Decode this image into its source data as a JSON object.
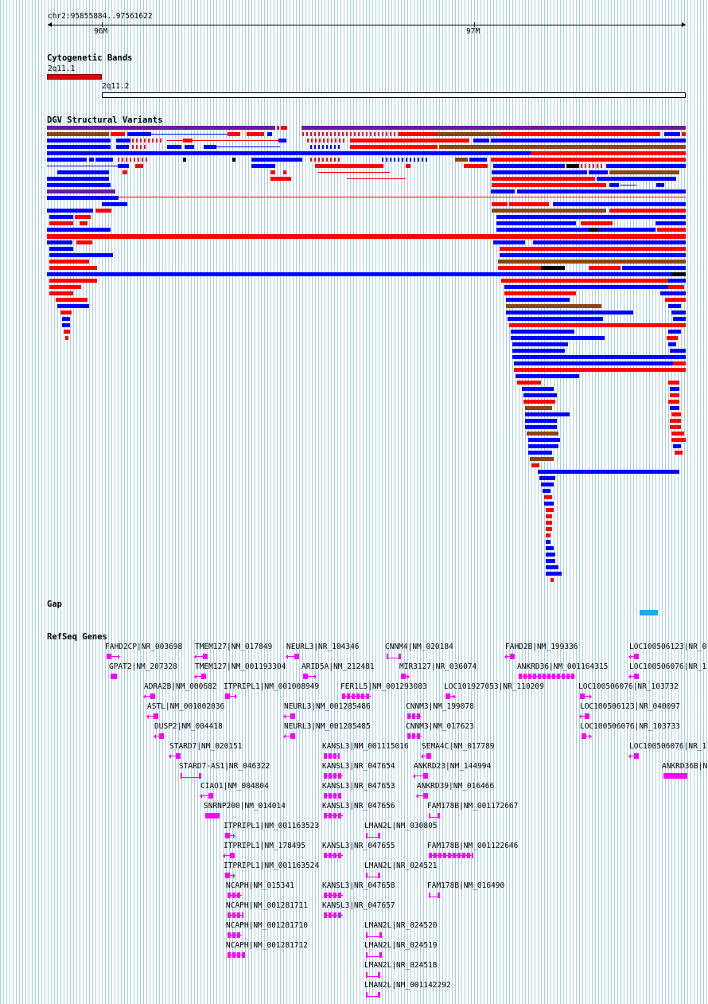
{
  "ruler": {
    "position": "chr2:95855884..97561622",
    "ticks": [
      "96M",
      "97M"
    ]
  },
  "tracks": {
    "cytoband_title": "Cytogenetic Bands",
    "dgv_title": "DGV Structural Variants",
    "gap_title": "Gap",
    "refseq_title": "RefSeq Genes"
  },
  "cytobands": [
    "2q11.1",
    "2q11.2"
  ],
  "colors": {
    "grid": "#a9cfe6",
    "sv_red": "#ff0000",
    "sv_blue": "#0000ff",
    "sv_brown": "#8b4513",
    "sv_purple": "#6a1b9a",
    "gene": "#ff00ff",
    "gap": "#1eaaf1",
    "band_red": "#e00000"
  },
  "genes": [
    "FAHD2CP|NR_003698",
    "TMEM127|NM_017849",
    "NEURL3|NR_104346",
    "CNNM4|NM_020184",
    "FAHD2B|NM_199336",
    "LOC100506123|NR_0",
    "GPAT2|NM_207328",
    "TMEM127|NM_001193304",
    "ARID5A|NM_212481",
    "MIR3127|NR_036074",
    "ANKRD36|NM_001164315",
    "LOC100506076|NR_1",
    "ADRA2B|NM_000682",
    "ITPRIPL1|NM_001008949",
    "FER1L5|NM_001293083",
    "LOC101927053|NR_110209",
    "LOC100506076|NR_103732",
    "ASTL|NM_001002036",
    "NEURL3|NM_001285486",
    "CNNM3|NM_199078",
    "LOC100506123|NR_040097",
    "DUSP2|NM_004418",
    "NEURL3|NM_001285485",
    "CNNM3|NM_017623",
    "LOC100506076|NR_103733",
    "STARD7|NM_020151",
    "KANSL3|NM_001115016",
    "SEMA4C|NM_017789",
    "LOC100506076|NR_1",
    "STARD7-AS1|NR_046322",
    "KANSL3|NR_047654",
    "ANKRD23|NM_144994",
    "ANKRD36B|N",
    "CIAO1|NM_004804",
    "KANSL3|NR_047653",
    "ANKRD39|NM_016466",
    "SNRNP200|NM_014014",
    "KANSL3|NR_047656",
    "FAM178B|NM_001172667",
    "ITPRIPL1|NM_001163523",
    "LMAN2L|NM_030805",
    "ITPRIPL1|NM_178495",
    "KANSL3|NR_047655",
    "FAM178B|NM_001122646",
    "ITPRIPL1|NM_001163524",
    "LMAN2L|NR_024521",
    "NCAPH|NM_015341",
    "KANSL3|NR_047658",
    "FAM178B|NM_016490",
    "NCAPH|NM_001281711",
    "KANSL3|NR_047657",
    "NCAPH|NM_001281710",
    "LMAN2L|NR_024520",
    "NCAPH|NM_001281712",
    "LMAN2L|NR_024519",
    "LMAN2L|NR_024518",
    "LMAN2L|NM_001142292"
  ]
}
